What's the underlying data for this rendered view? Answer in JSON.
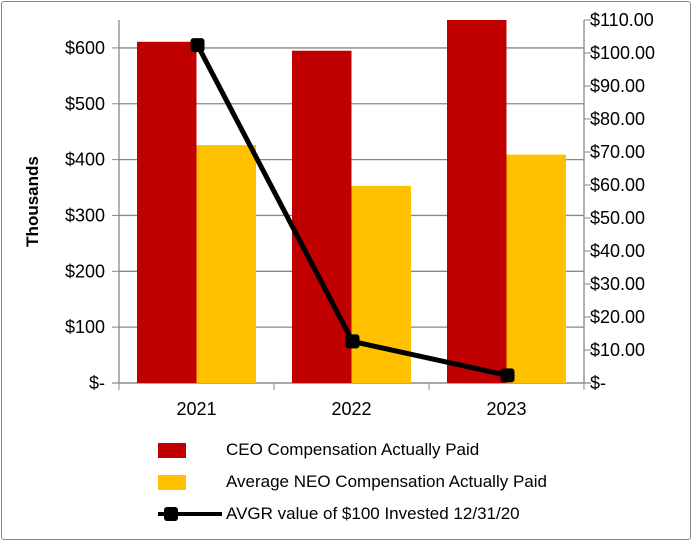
{
  "chart_data": {
    "type": "bar+line",
    "categories": [
      "2021",
      "2022",
      "2023"
    ],
    "ylabel": "Thousands",
    "ylim": [
      0,
      650
    ],
    "y_ticks": [
      "$-",
      "$100",
      "$200",
      "$300",
      "$400",
      "$500",
      "$600"
    ],
    "y2lim": [
      0,
      110
    ],
    "y2_ticks": [
      "$-",
      "$10.00",
      "$20.00",
      "$30.00",
      "$40.00",
      "$50.00",
      "$60.00",
      "$70.00",
      "$80.00",
      "$90.00",
      "$100.00",
      "$110.00"
    ],
    "grid": true,
    "legend": "bottom",
    "series": [
      {
        "name": "CEO Compensation Actually Paid",
        "type": "bar",
        "axis": "left",
        "color": "#C00000",
        "values": [
          611,
          595,
          650
        ]
      },
      {
        "name": "Average NEO Compensation Actually Paid",
        "type": "bar",
        "axis": "left",
        "color": "#FFC000",
        "values": [
          426,
          353,
          409
        ]
      },
      {
        "name": "AVGR value of $100 Invested 12/31/20",
        "type": "line",
        "axis": "right",
        "color": "#000000",
        "values": [
          102.4,
          12.6,
          2.3
        ]
      }
    ]
  }
}
